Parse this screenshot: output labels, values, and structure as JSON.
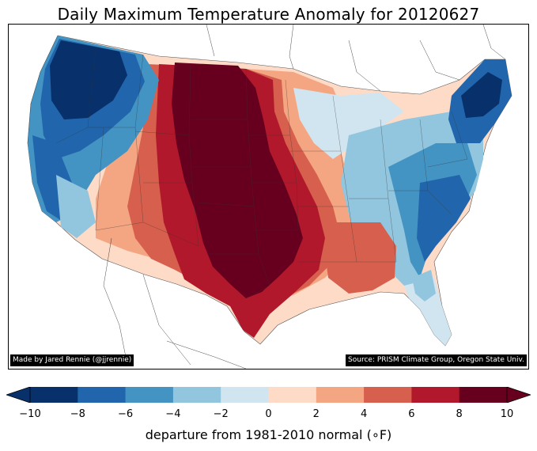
{
  "title": "Daily Maximum Temperature Anomaly for 20120627",
  "credits": {
    "left": "Made by Jared Rennie (@jjrennie)",
    "right": "Source: PRISM Climate Group, Oregon State Univ."
  },
  "colorbar": {
    "label": "departure from 1981-2010 normal (∘F)",
    "ticks": [
      "−10",
      "−8",
      "−6",
      "−4",
      "−2",
      "0",
      "2",
      "4",
      "6",
      "8",
      "10"
    ],
    "colors": [
      "#08306b",
      "#2166ac",
      "#4393c3",
      "#92c5de",
      "#d1e5f0",
      "#fddbc7",
      "#f4a582",
      "#d6604d",
      "#b2182b",
      "#67001f"
    ],
    "extend": "both"
  },
  "map": {
    "region": "Contiguous United States",
    "date": "20120627",
    "variable": "Daily maximum temperature anomaly",
    "units": "∘F",
    "pattern": {
      "northwest_and_west_coast": "-10 to -6",
      "great_basin": "-4 to 2",
      "southwest": "2 to 6",
      "central_plains": "8 to 10",
      "texas_and_lower_mississippi": "6 to 10",
      "southeast": "4 to 8",
      "great_lakes": "-2 to 2",
      "ohio_valley_and_mid_atlantic": "-6 to -2",
      "new_england": "-10 to -6",
      "florida_and_southeast_coast": "-8 to -2"
    }
  }
}
